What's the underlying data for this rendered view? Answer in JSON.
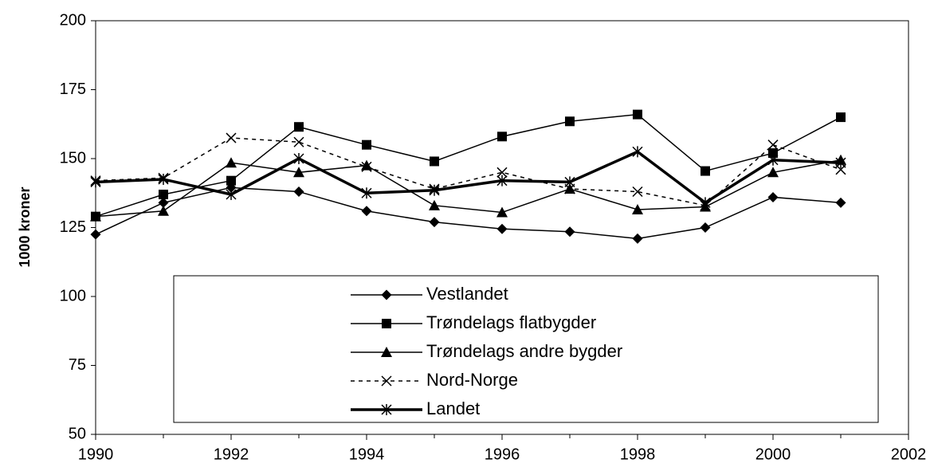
{
  "chart_data": {
    "type": "line",
    "y_label": "1000 kroner",
    "x": [
      1990,
      1991,
      1992,
      1993,
      1994,
      1995,
      1996,
      1997,
      1998,
      1999,
      2000,
      2001
    ],
    "series": [
      {
        "name": "Vestlandet",
        "color": "#000000",
        "marker": "diamond",
        "line_width": 1.5,
        "dashed": false,
        "values": [
          122.5,
          134,
          139.5,
          138,
          131,
          127,
          124.5,
          123.5,
          121,
          125,
          136,
          134
        ]
      },
      {
        "name": "Trøndelags  flatbygder",
        "color": "#000000",
        "marker": "square",
        "line_width": 1.5,
        "dashed": false,
        "values": [
          129,
          137,
          142,
          161.5,
          155,
          149,
          158,
          163.5,
          166,
          145.5,
          152,
          165
        ]
      },
      {
        "name": "Trøndelags andre bygder",
        "color": "#000000",
        "marker": "triangle",
        "line_width": 1.5,
        "dashed": false,
        "values": [
          129,
          131,
          148.5,
          145,
          147.5,
          133,
          130.5,
          139,
          131.5,
          132.5,
          145,
          149.5
        ]
      },
      {
        "name": "Nord-Norge",
        "color": "#000000",
        "marker": "x",
        "line_width": 1.5,
        "dashed": true,
        "values": [
          142,
          143,
          157.5,
          156,
          147,
          139,
          145,
          139,
          138,
          133,
          155,
          146
        ]
      },
      {
        "name": "Landet",
        "color": "#000000",
        "marker": "star",
        "line_width": 3.5,
        "dashed": false,
        "values": [
          141.5,
          142.5,
          137,
          150,
          137.5,
          138.5,
          142,
          141.5,
          152.5,
          134,
          149.5,
          148.5
        ]
      }
    ],
    "xlim": [
      1990,
      2002
    ],
    "xticks": [
      1990,
      1992,
      1994,
      1996,
      1998,
      2000,
      2002
    ],
    "ylim": [
      50,
      200
    ],
    "yticks": [
      50,
      75,
      100,
      125,
      150,
      175,
      200
    ],
    "grid": false
  }
}
